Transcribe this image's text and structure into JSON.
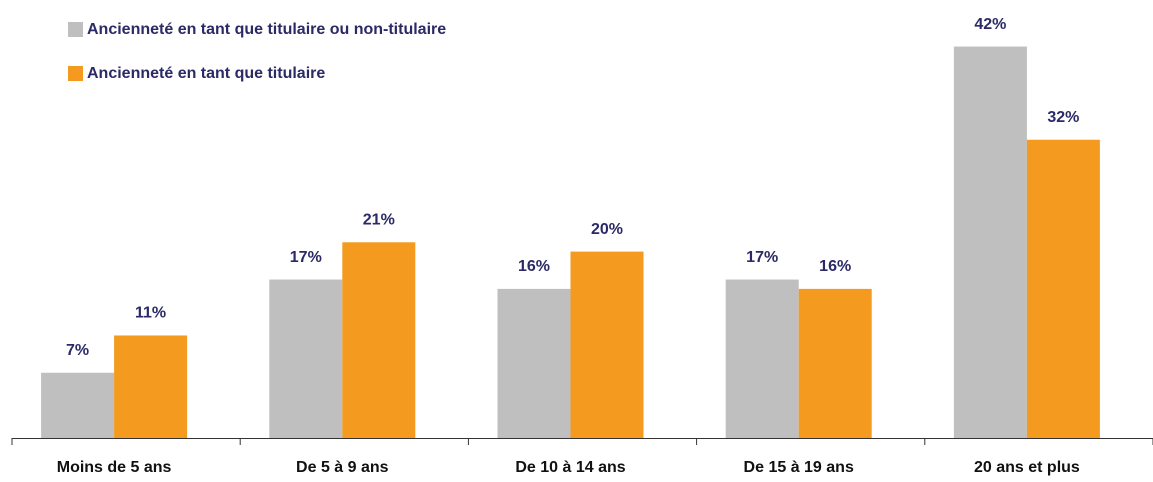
{
  "chart_data": {
    "type": "bar",
    "categories": [
      "Moins de 5 ans",
      "De 5 à 9 ans",
      "De 10 à 14 ans",
      "De 15 à 19 ans",
      "20 ans et plus"
    ],
    "series": [
      {
        "name": "Ancienneté en tant que titulaire ou non-titulaire",
        "color": "#bfbfbf",
        "values": [
          7,
          17,
          16,
          17,
          42
        ],
        "value_labels": [
          "7%",
          "17%",
          "16%",
          "17%",
          "42%"
        ]
      },
      {
        "name": "Ancienneté en tant que titulaire",
        "color": "#f39a1f",
        "values": [
          11,
          21,
          20,
          16,
          32
        ],
        "value_labels": [
          "11%",
          "21%",
          "20%",
          "16%",
          "32%"
        ]
      }
    ],
    "legend": "top-left"
  }
}
